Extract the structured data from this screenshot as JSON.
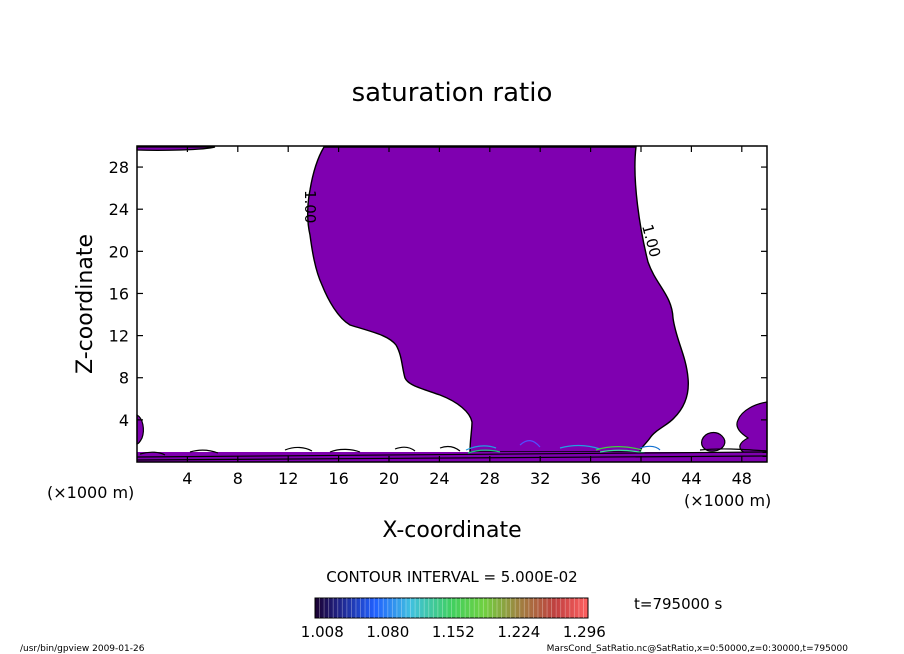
{
  "chart_data": {
    "type": "contour",
    "title": "saturation ratio",
    "xlabel": "X-coordinate",
    "ylabel": "Z-coordinate",
    "x_unit": "(×1000 m)",
    "x_unit_right": "(×1000 m)",
    "xlim": [
      0,
      50
    ],
    "ylim": [
      0,
      30
    ],
    "x_ticks": [
      4,
      8,
      12,
      16,
      20,
      24,
      28,
      32,
      36,
      40,
      44,
      48
    ],
    "y_ticks": [
      4,
      8,
      12,
      16,
      20,
      24,
      28
    ],
    "contour_labels": [
      "1.00",
      "1.00"
    ],
    "contour_interval": "CONTOUR INTERVAL = 5.000E-02",
    "time": "t=795000 s",
    "colorbar_ticks": [
      "1.008",
      "1.080",
      "1.152",
      "1.224",
      "1.296"
    ],
    "colorbar_range": [
      1.0,
      1.3
    ],
    "fill_color": "#7f00b0",
    "grid": false
  },
  "footer": {
    "left": "/usr/bin/gpview   2009-01-26",
    "right": "MarsCond_SatRatio.nc@SatRatio,x=0:50000,z=0:30000,t=795000"
  }
}
